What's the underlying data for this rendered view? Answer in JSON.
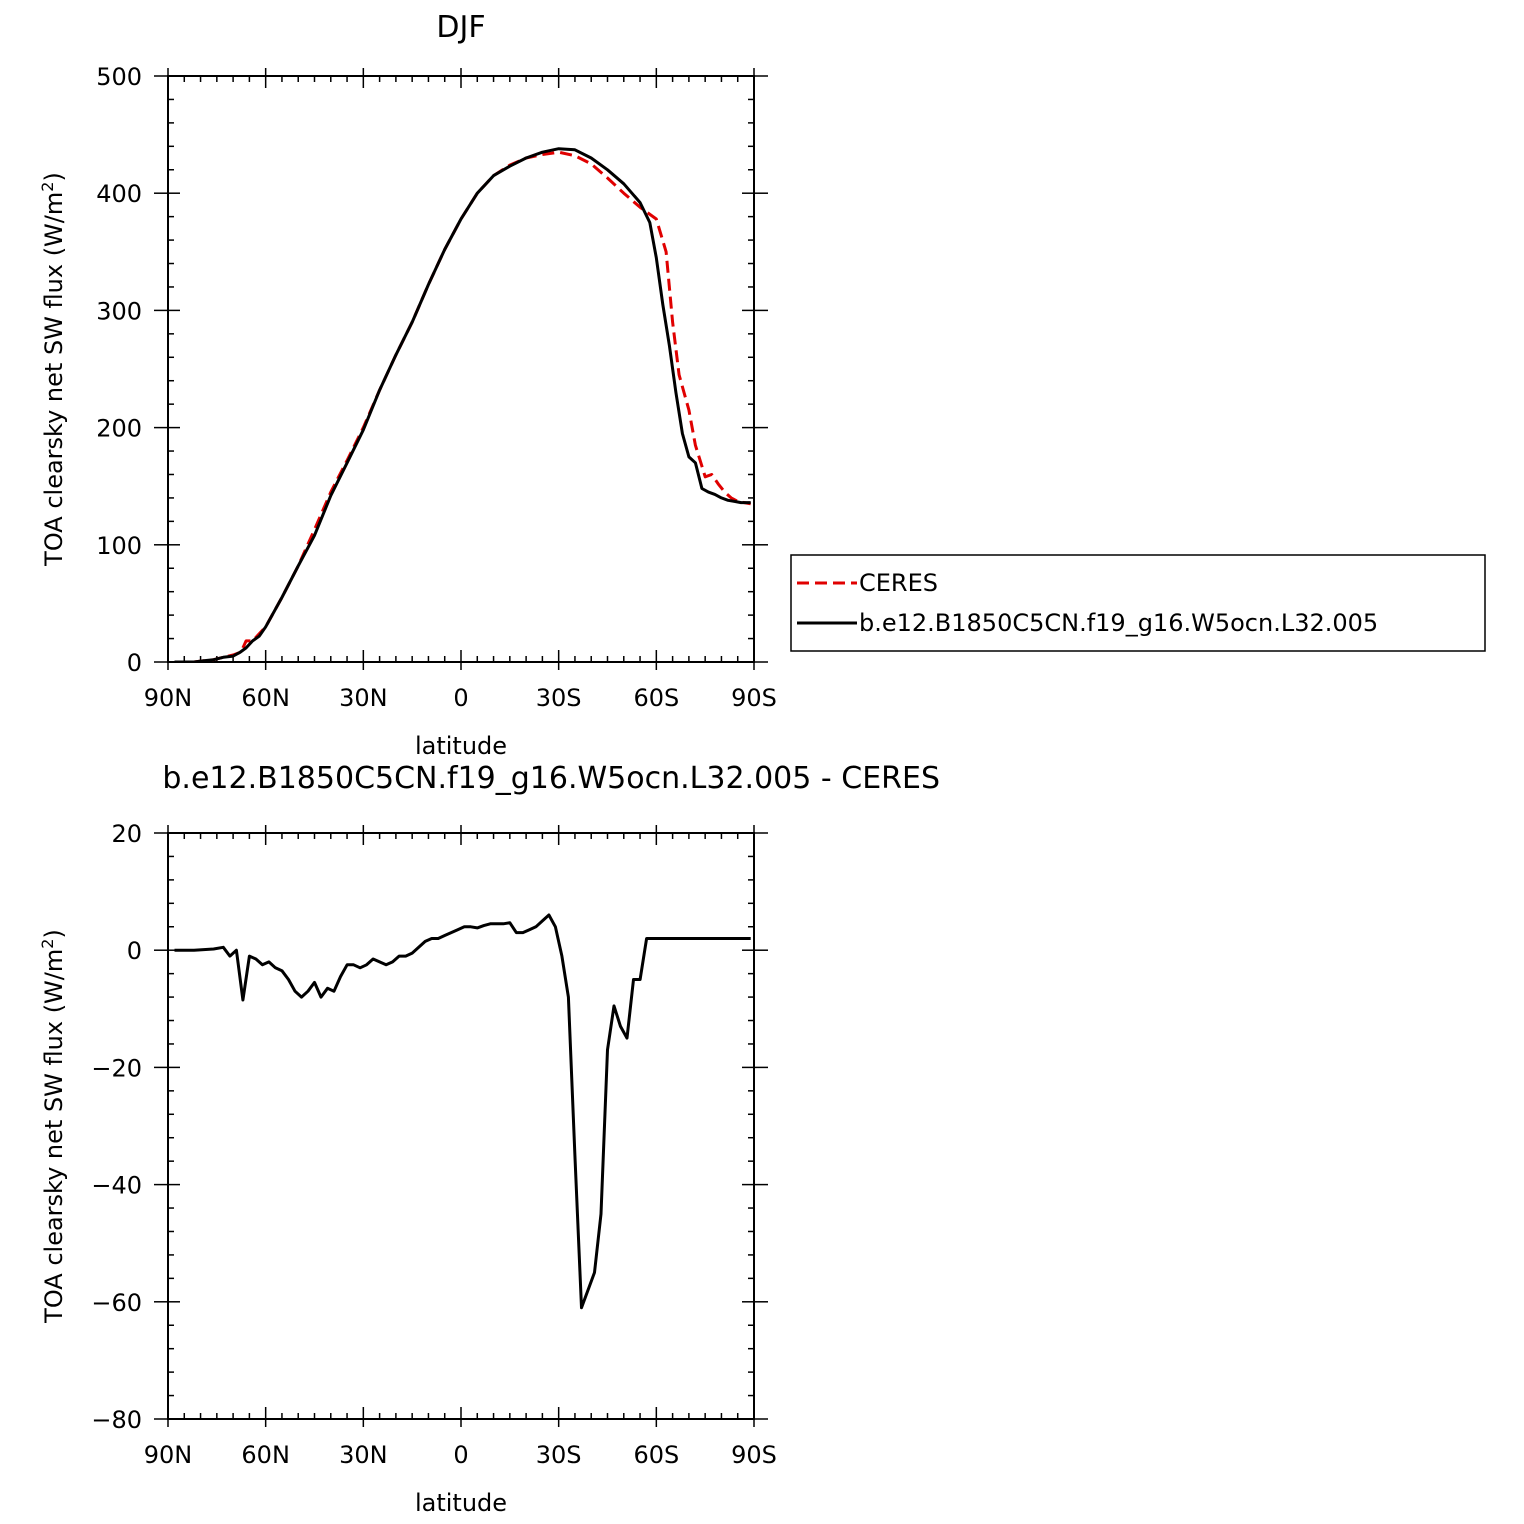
{
  "chart_data": [
    {
      "type": "line",
      "title": "DJF",
      "xlabel": "latitude",
      "ylabel_main": "TOA clearsky net SW flux (W/m",
      "ylabel_sup": "2",
      "ylabel_end": ")",
      "xlim": [
        90,
        -90
      ],
      "ylim": [
        0,
        500
      ],
      "xticks": [
        {
          "value": 90,
          "label": "90N"
        },
        {
          "value": 60,
          "label": "60N"
        },
        {
          "value": 30,
          "label": "30N"
        },
        {
          "value": 0,
          "label": "0"
        },
        {
          "value": -30,
          "label": "30S"
        },
        {
          "value": -60,
          "label": "60S"
        },
        {
          "value": -90,
          "label": "90S"
        }
      ],
      "yticks": [
        {
          "value": 0,
          "label": "0"
        },
        {
          "value": 100,
          "label": "100"
        },
        {
          "value": 200,
          "label": "200"
        },
        {
          "value": 300,
          "label": "300"
        },
        {
          "value": 400,
          "label": "400"
        },
        {
          "value": 500,
          "label": "500"
        }
      ],
      "legend": {
        "placement": "right"
      },
      "series": [
        {
          "name": "CERES",
          "color": "#e00000",
          "dash": true,
          "x": [
            88,
            85,
            82,
            79,
            76,
            73,
            70,
            68,
            67,
            66,
            64,
            60,
            55,
            50,
            45,
            40,
            35,
            30,
            25,
            20,
            15,
            10,
            5,
            0,
            -5,
            -10,
            -15,
            -20,
            -25,
            -30,
            -35,
            -40,
            -45,
            -50,
            -55,
            -60,
            -63,
            -65,
            -67,
            -70,
            -72,
            -75,
            -77,
            -79,
            -81,
            -83,
            -85,
            -87,
            -89
          ],
          "y": [
            0,
            0,
            0,
            1,
            2,
            4,
            6,
            8,
            12,
            18,
            18,
            30,
            55,
            82,
            113,
            145,
            172,
            200,
            232,
            262,
            290,
            322,
            352,
            378,
            400,
            415,
            424,
            430,
            433,
            435,
            432,
            425,
            413,
            400,
            388,
            378,
            350,
            290,
            245,
            215,
            185,
            158,
            160,
            152,
            145,
            140,
            137,
            136,
            135
          ]
        },
        {
          "name": "b.e12.B1850C5CN.f19_g16.W5ocn.L32.005",
          "color": "#000000",
          "dash": false,
          "x": [
            88,
            85,
            82,
            79,
            76,
            73,
            70,
            68,
            66,
            64,
            62,
            60,
            55,
            50,
            45,
            40,
            35,
            30,
            25,
            20,
            15,
            10,
            5,
            0,
            -5,
            -10,
            -15,
            -20,
            -25,
            -30,
            -35,
            -40,
            -45,
            -50,
            -55,
            -58,
            -60,
            -62,
            -64,
            -66,
            -68,
            -70,
            -72,
            -74,
            -76,
            -78,
            -80,
            -82,
            -84,
            -86,
            -89
          ],
          "y": [
            0,
            0,
            0,
            1,
            2,
            4,
            5,
            8,
            12,
            18,
            22,
            30,
            55,
            82,
            108,
            142,
            170,
            198,
            232,
            262,
            290,
            322,
            352,
            378,
            400,
            415,
            423,
            430,
            435,
            438,
            437,
            430,
            420,
            408,
            392,
            375,
            345,
            305,
            270,
            230,
            195,
            175,
            170,
            148,
            145,
            143,
            140,
            138,
            137,
            136,
            136
          ]
        }
      ]
    },
    {
      "type": "line",
      "title": "b.e12.B1850C5CN.f19_g16.W5ocn.L32.005 - CERES",
      "xlabel": "latitude",
      "ylabel_main": "TOA clearsky net SW flux (W/m",
      "ylabel_sup": "2",
      "ylabel_end": ")",
      "xlim": [
        90,
        -90
      ],
      "ylim": [
        -80,
        20
      ],
      "xticks": [
        {
          "value": 90,
          "label": "90N"
        },
        {
          "value": 60,
          "label": "60N"
        },
        {
          "value": 30,
          "label": "30N"
        },
        {
          "value": 0,
          "label": "0"
        },
        {
          "value": -30,
          "label": "30S"
        },
        {
          "value": -60,
          "label": "60S"
        },
        {
          "value": -90,
          "label": "90S"
        }
      ],
      "yticks": [
        {
          "value": -80,
          "label": "−80"
        },
        {
          "value": -60,
          "label": "−60"
        },
        {
          "value": -40,
          "label": "−40"
        },
        {
          "value": -20,
          "label": "−20"
        },
        {
          "value": 0,
          "label": "0"
        },
        {
          "value": 20,
          "label": "20"
        }
      ],
      "series": [
        {
          "name": "",
          "color": "#000000",
          "dash": false,
          "x": [
            88,
            85,
            82,
            79,
            76,
            73,
            71,
            69,
            67,
            65,
            63,
            61,
            59,
            57,
            55,
            53,
            51,
            49,
            47,
            45,
            43,
            41,
            39,
            37,
            35,
            33,
            31,
            29,
            27,
            25,
            23,
            21,
            19,
            17,
            15,
            13,
            11,
            9,
            7,
            5,
            3,
            1,
            -1,
            -3,
            -5,
            -7,
            -9,
            -11,
            -13,
            -15,
            -17,
            -19,
            -21,
            -23,
            -25,
            -27,
            -29,
            -31,
            -33,
            -35,
            -37,
            -39,
            -41,
            -43,
            -45,
            -47,
            -49,
            -51,
            -53,
            -55,
            -57,
            -59,
            -61,
            -63,
            -65,
            -67,
            -69,
            -71,
            -73,
            -75,
            -77,
            -79,
            -81,
            -83,
            -85,
            -87,
            -89
          ],
          "y": [
            0,
            0,
            0,
            0.1,
            0.2,
            0.5,
            -1,
            0,
            -8.5,
            -1,
            -1.5,
            -2.5,
            -2,
            -3,
            -3.5,
            -5,
            -7,
            -8,
            -7,
            -5.5,
            -8,
            -6.5,
            -7,
            -4.5,
            -2.5,
            -2.5,
            -3,
            -2.5,
            -1.5,
            -2,
            -2.5,
            -2,
            -1,
            -1,
            -0.5,
            0.5,
            1.5,
            2,
            2,
            2.5,
            3,
            3.5,
            4,
            4,
            3.8,
            4.2,
            4.5,
            4.5,
            4.5,
            4.7,
            3,
            3,
            3.5,
            4,
            5,
            6,
            4,
            -1,
            -8,
            -35,
            -61,
            -58,
            -55,
            -45,
            -17,
            -9.5,
            -13,
            -15,
            -5,
            -5,
            2,
            2,
            2,
            2,
            2,
            2,
            2,
            2,
            2,
            2,
            2,
            2,
            2,
            2,
            2,
            2,
            2
          ]
        }
      ]
    }
  ]
}
